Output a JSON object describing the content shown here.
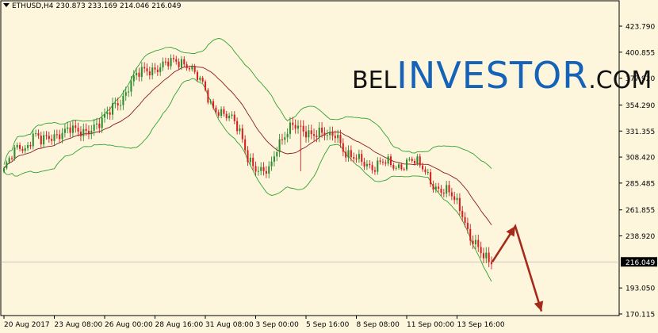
{
  "title_bar": {
    "symbol_tf": "ETHUSD,H4",
    "open": "230.873",
    "high": "233.169",
    "low": "214.046",
    "close": "216.049"
  },
  "watermark": {
    "part1": "BEL",
    "part2": "INVESTOR",
    "part3": ".COM"
  },
  "chart_data": {
    "type": "candlestick",
    "symbol": "ETHUSD",
    "timeframe": "H4",
    "y_ticks": [
      "423.790",
      "400.855",
      "377.920",
      "354.290",
      "331.355",
      "308.420",
      "285.485",
      "261.855",
      "238.920",
      "216.049",
      "193.050",
      "170.115"
    ],
    "ylim": [
      170.115,
      423.79
    ],
    "current_price": 216.049,
    "x_ticks": [
      "20 Aug 2017",
      "23 Aug 08:00",
      "26 Aug 00:00",
      "28 Aug 16:00",
      "31 Aug 08:00",
      "3 Sep 00:00",
      "5 Sep 16:00",
      "8 Sep 08:00",
      "11 Sep 00:00",
      "13 Sep 16:00"
    ],
    "bullish_color": "#2e8b2e",
    "bearish_color": "#d42020",
    "bollinger_color": "#2fa22f",
    "ma_color": "#8b1a1a",
    "arrow_color": "#a52a1a",
    "forecast_path": [
      216.0,
      247.5,
      172.5
    ],
    "close_path": [
      297,
      308,
      318,
      316,
      330,
      322,
      324,
      328,
      332,
      333,
      329,
      331,
      336,
      338,
      345,
      355,
      360,
      372,
      380,
      385,
      386,
      388,
      390,
      392,
      393,
      390,
      380,
      370,
      355,
      350,
      345,
      340,
      330,
      310,
      298,
      293,
      298,
      320,
      328,
      335,
      333,
      331,
      330,
      329,
      325,
      330,
      315,
      308,
      305,
      302,
      300,
      305,
      302,
      298,
      302,
      308,
      302,
      295,
      285,
      280,
      278,
      270,
      260,
      240,
      230,
      218,
      216
    ]
  }
}
